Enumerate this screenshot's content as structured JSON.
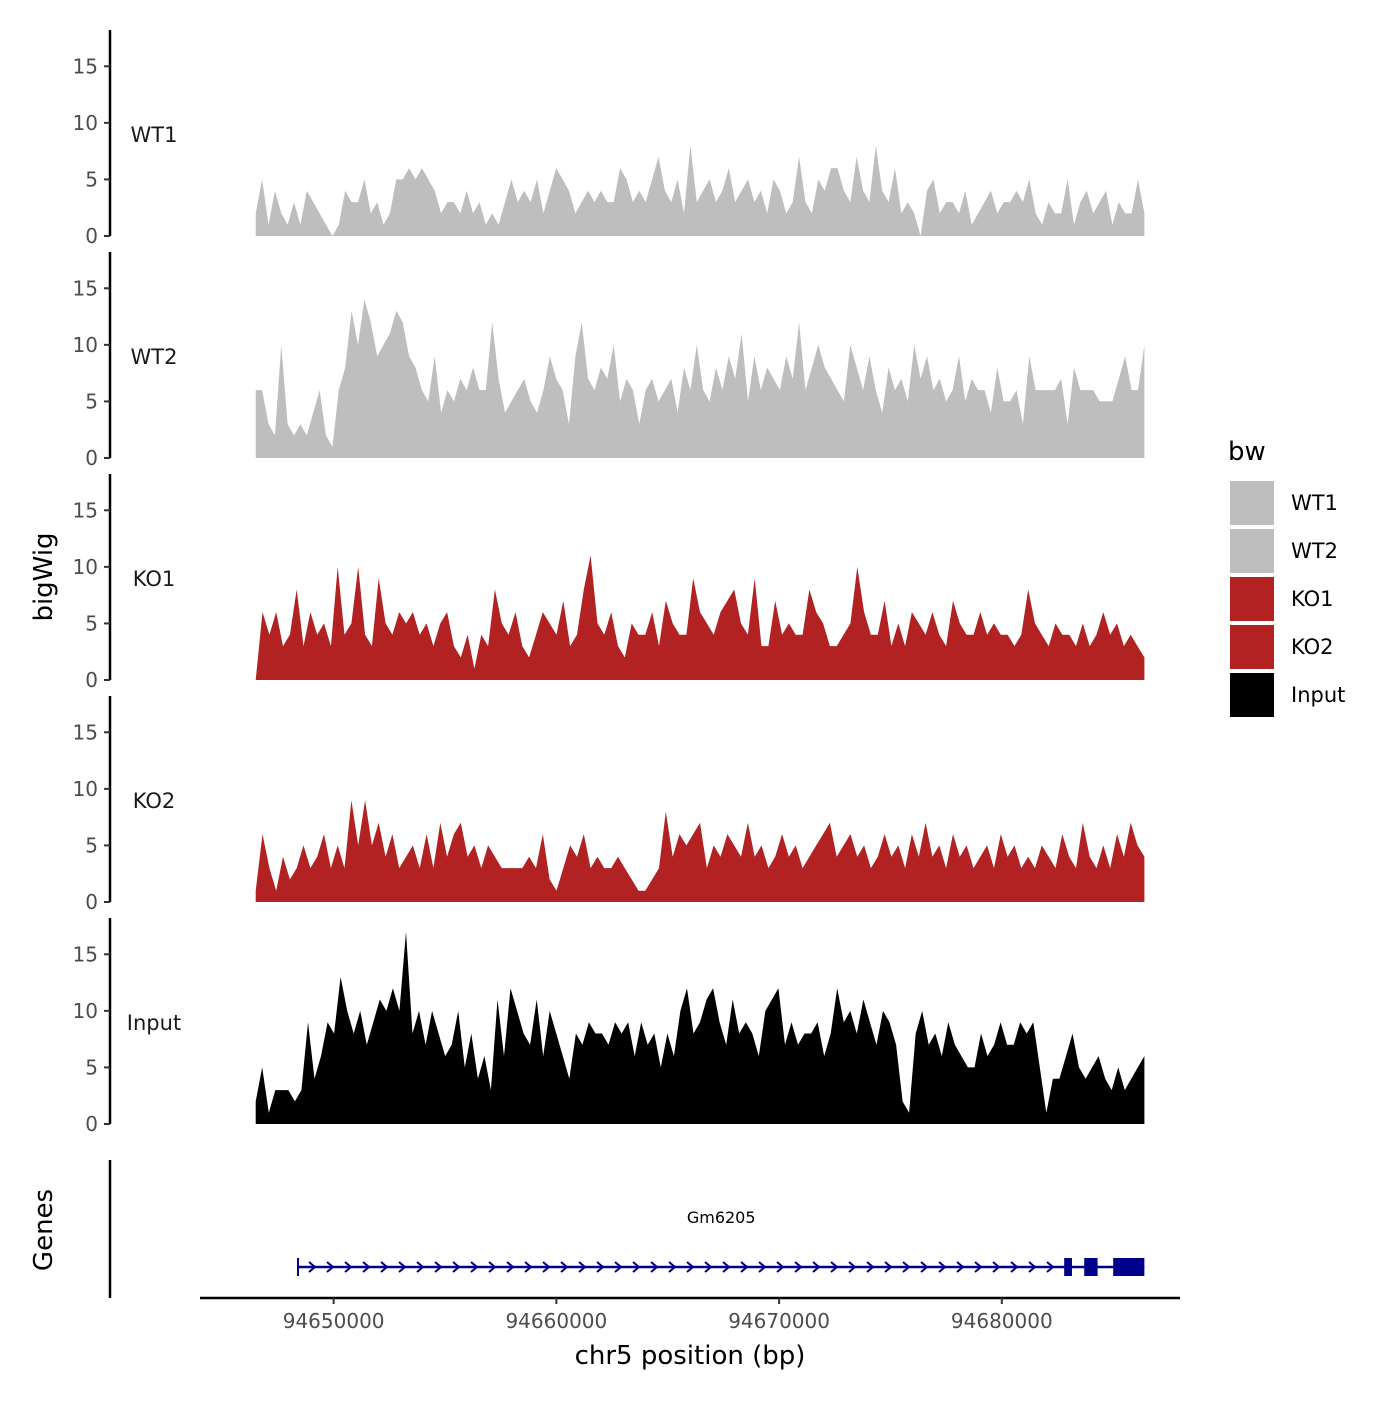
{
  "chart_data": {
    "type": "area",
    "title": "",
    "ylabel": "bigWig",
    "xlabel": "chr5 position (bp)",
    "genes_label": "Genes",
    "x_range": [
      94644000,
      94688000
    ],
    "data_x_range": [
      94646500,
      94686400
    ],
    "ylim": [
      0,
      17.5
    ],
    "y_ticks": [
      0,
      5,
      10,
      15
    ],
    "x_ticks": [
      94650000,
      94660000,
      94670000,
      94680000
    ],
    "legend": {
      "title": "bw",
      "entries": [
        {
          "label": "WT1",
          "color": "#bebebe"
        },
        {
          "label": "WT2",
          "color": "#bebebe"
        },
        {
          "label": "KO1",
          "color": "#b22222"
        },
        {
          "label": "KO2",
          "color": "#b22222"
        },
        {
          "label": "Input",
          "color": "#000000"
        }
      ]
    },
    "series": [
      {
        "name": "WT1",
        "color": "#bebebe",
        "values": [
          2,
          5,
          1,
          4,
          2,
          1,
          3,
          1,
          4,
          3,
          2,
          1,
          0,
          1,
          4,
          3,
          3,
          5,
          2,
          3,
          1,
          2,
          5,
          5,
          6,
          5,
          6,
          5,
          4,
          2,
          3,
          3,
          2,
          4,
          2,
          3,
          1,
          2,
          1,
          3,
          5,
          3,
          4,
          3,
          5,
          2,
          4,
          6,
          5,
          4,
          2,
          3,
          4,
          3,
          4,
          3,
          3,
          6,
          5,
          3,
          4,
          3,
          5,
          7,
          4,
          3,
          5,
          2,
          8,
          3,
          4,
          5,
          3,
          4,
          6,
          3,
          4,
          5,
          3,
          4,
          2,
          5,
          4,
          2,
          3,
          7,
          3,
          2,
          5,
          4,
          6,
          6,
          4,
          3,
          7,
          4,
          3,
          8,
          4,
          3,
          6,
          2,
          3,
          2,
          0,
          4,
          5,
          2,
          3,
          3,
          2,
          4,
          1,
          2,
          3,
          4,
          2,
          3,
          3,
          4,
          3,
          5,
          2,
          1,
          3,
          2,
          2,
          5,
          1,
          3,
          4,
          2,
          3,
          4,
          1,
          3,
          2,
          2,
          5,
          2
        ]
      },
      {
        "name": "WT2",
        "color": "#bebebe",
        "values": [
          6,
          6,
          3,
          2,
          10,
          3,
          2,
          3,
          2,
          4,
          6,
          2,
          1,
          6,
          8,
          13,
          10,
          14,
          12,
          9,
          10,
          11,
          13,
          12,
          9,
          8,
          6,
          5,
          9,
          4,
          6,
          5,
          7,
          6,
          8,
          6,
          6,
          12,
          7,
          4,
          5,
          6,
          7,
          5,
          4,
          6,
          9,
          7,
          6,
          3,
          9,
          12,
          7,
          6,
          8,
          7,
          10,
          5,
          7,
          6,
          3,
          6,
          7,
          5,
          6,
          7,
          4,
          8,
          6,
          10,
          6,
          5,
          8,
          6,
          9,
          7,
          11,
          5,
          9,
          6,
          8,
          7,
          6,
          9,
          7,
          12,
          6,
          8,
          10,
          8,
          7,
          6,
          5,
          10,
          8,
          6,
          9,
          6,
          4,
          8,
          6,
          7,
          5,
          10,
          7,
          9,
          6,
          7,
          5,
          6,
          9,
          5,
          7,
          6,
          6,
          4,
          8,
          5,
          5,
          6,
          3,
          9,
          6,
          6,
          6,
          6,
          7,
          3,
          8,
          6,
          6,
          6,
          5,
          5,
          5,
          7,
          9,
          6,
          6,
          10
        ]
      },
      {
        "name": "KO1",
        "color": "#b22222",
        "values": [
          0,
          6,
          4,
          6,
          3,
          4,
          8,
          3,
          6,
          4,
          5,
          3,
          10,
          4,
          5,
          10,
          4,
          3,
          9,
          5,
          4,
          6,
          5,
          6,
          4,
          5,
          3,
          5,
          6,
          3,
          2,
          4,
          1,
          4,
          3,
          8,
          5,
          4,
          6,
          3,
          2,
          4,
          6,
          5,
          4,
          7,
          3,
          4,
          8,
          11,
          5,
          4,
          6,
          3,
          2,
          5,
          4,
          4,
          6,
          3,
          7,
          5,
          4,
          4,
          9,
          6,
          5,
          4,
          6,
          7,
          8,
          5,
          4,
          9,
          3,
          3,
          7,
          4,
          5,
          4,
          4,
          8,
          6,
          5,
          3,
          3,
          4,
          5,
          10,
          6,
          4,
          4,
          7,
          3,
          5,
          3,
          6,
          5,
          4,
          6,
          4,
          3,
          7,
          5,
          4,
          4,
          6,
          4,
          5,
          4,
          4,
          3,
          4,
          8,
          5,
          4,
          3,
          5,
          4,
          4,
          3,
          5,
          3,
          4,
          6,
          4,
          5,
          3,
          4,
          3,
          2
        ]
      },
      {
        "name": "KO2",
        "color": "#b22222",
        "values": [
          1,
          6,
          3,
          1,
          4,
          2,
          3,
          5,
          3,
          4,
          6,
          3,
          5,
          3,
          9,
          5,
          9,
          5,
          7,
          4,
          6,
          3,
          4,
          5,
          3,
          6,
          3,
          7,
          4,
          6,
          7,
          4,
          5,
          3,
          5,
          4,
          3,
          3,
          3,
          3,
          4,
          3,
          6,
          2,
          1,
          3,
          5,
          4,
          6,
          3,
          4,
          3,
          3,
          4,
          3,
          2,
          1,
          1,
          2,
          3,
          8,
          4,
          6,
          5,
          6,
          7,
          3,
          5,
          4,
          6,
          5,
          4,
          7,
          4,
          5,
          3,
          4,
          6,
          4,
          5,
          3,
          4,
          5,
          6,
          7,
          4,
          5,
          6,
          4,
          5,
          3,
          4,
          6,
          4,
          5,
          3,
          6,
          4,
          7,
          4,
          5,
          3,
          6,
          4,
          5,
          3,
          4,
          5,
          3,
          6,
          4,
          5,
          3,
          4,
          3,
          5,
          4,
          3,
          6,
          4,
          3,
          7,
          4,
          3,
          5,
          3,
          6,
          4,
          7,
          5,
          4
        ]
      },
      {
        "name": "Input",
        "color": "#000000",
        "values": [
          2,
          5,
          1,
          3,
          3,
          3,
          2,
          3,
          9,
          4,
          6,
          9,
          8,
          13,
          10,
          8,
          10,
          7,
          9,
          11,
          10,
          12,
          10,
          17,
          8,
          10,
          7,
          10,
          8,
          6,
          7,
          10,
          5,
          8,
          4,
          6,
          3,
          11,
          6,
          12,
          10,
          8,
          7,
          11,
          6,
          10,
          8,
          6,
          4,
          8,
          7,
          9,
          8,
          8,
          7,
          9,
          8,
          9,
          6,
          9,
          7,
          8,
          5,
          8,
          6,
          10,
          12,
          8,
          9,
          11,
          12,
          9,
          7,
          11,
          8,
          9,
          8,
          6,
          10,
          11,
          12,
          7,
          9,
          7,
          8,
          8,
          9,
          6,
          8,
          12,
          9,
          10,
          8,
          11,
          9,
          7,
          10,
          9,
          7,
          2,
          1,
          8,
          10,
          7,
          8,
          6,
          9,
          7,
          6,
          5,
          5,
          8,
          6,
          7,
          9,
          7,
          7,
          9,
          8,
          9,
          5,
          1,
          4,
          4,
          6,
          8,
          5,
          4,
          5,
          6,
          4,
          3,
          5,
          3,
          4,
          5,
          6
        ]
      }
    ],
    "gene": {
      "name": "Gm6205",
      "strand": "+",
      "start": 94648400,
      "end": 94686400,
      "exons": [
        [
          94682800,
          94683150
        ],
        [
          94683700,
          94684300
        ],
        [
          94685000,
          94686400
        ]
      ],
      "color": "#00008b"
    }
  }
}
